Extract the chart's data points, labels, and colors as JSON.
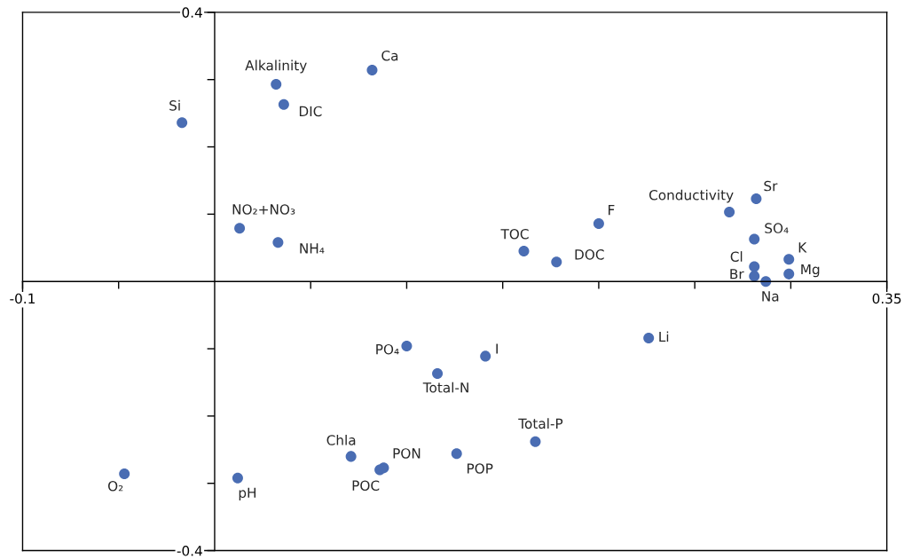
{
  "chart_data": {
    "type": "scatter",
    "marker": "circle",
    "grid": false,
    "x": [
      -0.017,
      0.032,
      0.036,
      0.082,
      0.013,
      0.033,
      0.161,
      0.178,
      0.2,
      0.268,
      0.282,
      0.281,
      0.299,
      0.299,
      0.281,
      0.281,
      0.287,
      0.226,
      0.1,
      0.141,
      0.116,
      0.167,
      0.071,
      0.088,
      0.086,
      0.126,
      -0.047,
      0.012
    ],
    "series": [
      {
        "color": "#4a6db3",
        "values": [
          0.236,
          0.293,
          0.263,
          0.314,
          0.079,
          0.058,
          0.045,
          0.029,
          0.086,
          0.103,
          0.123,
          0.063,
          0.033,
          0.011,
          0.022,
          0.008,
          0.0,
          -0.084,
          -0.096,
          -0.111,
          -0.137,
          -0.238,
          -0.26,
          -0.277,
          -0.28,
          -0.256,
          -0.286,
          -0.292
        ]
      }
    ],
    "annotations": [
      {
        "text": "Si",
        "x": -0.017,
        "y": 0.236
      },
      {
        "text": "Alkalinity",
        "x": 0.032,
        "y": 0.293
      },
      {
        "text": "DIC",
        "x": 0.036,
        "y": 0.263
      },
      {
        "text": "Ca",
        "x": 0.082,
        "y": 0.314
      },
      {
        "text": "NO₂+NO₃",
        "x": 0.013,
        "y": 0.079
      },
      {
        "text": "NH₄",
        "x": 0.033,
        "y": 0.058
      },
      {
        "text": "TOC",
        "x": 0.161,
        "y": 0.045
      },
      {
        "text": "DOC",
        "x": 0.178,
        "y": 0.029
      },
      {
        "text": "F",
        "x": 0.2,
        "y": 0.086
      },
      {
        "text": "Conductivity",
        "x": 0.268,
        "y": 0.103
      },
      {
        "text": "Sr",
        "x": 0.282,
        "y": 0.123
      },
      {
        "text": "SO₄",
        "x": 0.281,
        "y": 0.063
      },
      {
        "text": "K",
        "x": 0.299,
        "y": 0.033
      },
      {
        "text": "Mg",
        "x": 0.299,
        "y": 0.011
      },
      {
        "text": "Cl",
        "x": 0.281,
        "y": 0.022
      },
      {
        "text": "Br",
        "x": 0.281,
        "y": 0.008
      },
      {
        "text": "Na",
        "x": 0.287,
        "y": 0.0
      },
      {
        "text": "Li",
        "x": 0.226,
        "y": -0.084
      },
      {
        "text": "PO₄",
        "x": 0.1,
        "y": -0.096
      },
      {
        "text": "I",
        "x": 0.141,
        "y": -0.111
      },
      {
        "text": "Total-N",
        "x": 0.116,
        "y": -0.137
      },
      {
        "text": "Total-P",
        "x": 0.167,
        "y": -0.238
      },
      {
        "text": "Chla",
        "x": 0.071,
        "y": -0.26
      },
      {
        "text": "PON",
        "x": 0.088,
        "y": -0.277
      },
      {
        "text": "POC",
        "x": 0.086,
        "y": -0.28
      },
      {
        "text": "POP",
        "x": 0.126,
        "y": -0.256
      },
      {
        "text": "O₂",
        "x": -0.047,
        "y": -0.286
      },
      {
        "text": "pH",
        "x": 0.012,
        "y": -0.292
      }
    ],
    "xlim": [
      -0.1,
      0.35
    ],
    "ylim": [
      -0.4,
      0.4
    ],
    "xticks": [
      -0.1,
      {
        "value": -0.05,
        "label": null
      },
      {
        "value": 0.05,
        "label": null
      },
      {
        "value": 0.1,
        "label": null
      },
      {
        "value": 0.15,
        "label": null
      },
      {
        "value": 0.2,
        "label": null
      },
      {
        "value": 0.25,
        "label": null
      },
      {
        "value": 0.3,
        "label": null
      },
      0.35
    ],
    "yticks": [
      -0.4,
      {
        "value": -0.3,
        "label": null
      },
      {
        "value": -0.2,
        "label": null
      },
      {
        "value": -0.1,
        "label": null
      },
      {
        "value": 0.1,
        "label": null
      },
      {
        "value": 0.2,
        "label": null
      },
      {
        "value": 0.3,
        "label": null
      },
      0.4
    ]
  }
}
